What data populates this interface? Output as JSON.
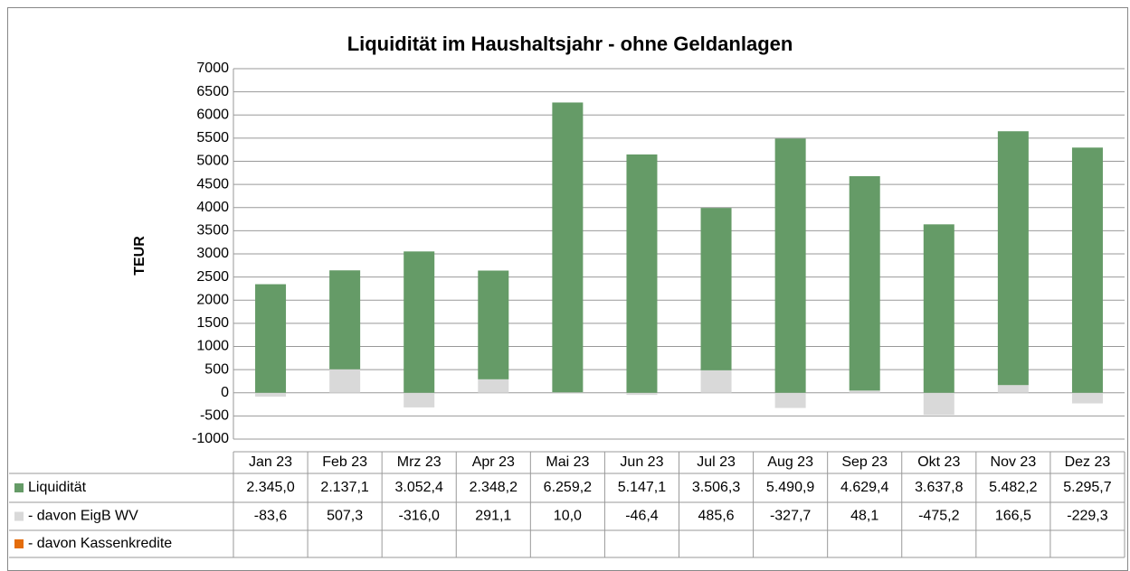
{
  "chart_data": {
    "type": "bar",
    "stacked": true,
    "title": "Liquidität im Haushaltsjahr - ohne Geldanlagen",
    "y_label": "TEUR",
    "categories": [
      "Jan 23",
      "Feb 23",
      "Mrz 23",
      "Apr 23",
      "Mai 23",
      "Jun 23",
      "Jul 23",
      "Aug 23",
      "Sep 23",
      "Okt 23",
      "Nov 23",
      "Dez 23"
    ],
    "series": [
      {
        "name": "Liquidität",
        "color": "#659b67",
        "values": [
          2345.0,
          2137.1,
          3052.4,
          2348.2,
          6259.2,
          5147.1,
          3506.3,
          5490.9,
          4629.4,
          3637.8,
          5482.2,
          5295.7
        ],
        "value_labels": [
          "2.345,0",
          "2.137,1",
          "3.052,4",
          "2.348,2",
          "6.259,2",
          "5.147,1",
          "3.506,3",
          "5.490,9",
          "4.629,4",
          "3.637,8",
          "5.482,2",
          "5.295,7"
        ]
      },
      {
        "name": "- davon EigB WV",
        "color": "#d9d9d9",
        "values": [
          -83.6,
          507.3,
          -316.0,
          291.1,
          10.0,
          -46.4,
          485.6,
          -327.7,
          48.1,
          -475.2,
          166.5,
          -229.3
        ],
        "value_labels": [
          "-83,6",
          "507,3",
          "-316,0",
          "291,1",
          "10,0",
          "-46,4",
          "485,6",
          "-327,7",
          "48,1",
          "-475,2",
          "166,5",
          "-229,3"
        ]
      },
      {
        "name": "- davon Kassenkredite",
        "color": "#e46c0a",
        "values": [
          null,
          null,
          null,
          null,
          null,
          null,
          null,
          null,
          null,
          null,
          null,
          null
        ]
      }
    ],
    "ylim": [
      -1000,
      7000
    ],
    "yticks": [
      -1000,
      -500,
      0,
      500,
      1000,
      1500,
      2000,
      2500,
      3000,
      3500,
      4000,
      4500,
      5000,
      5500,
      6000,
      6500,
      7000
    ],
    "grid": true
  }
}
